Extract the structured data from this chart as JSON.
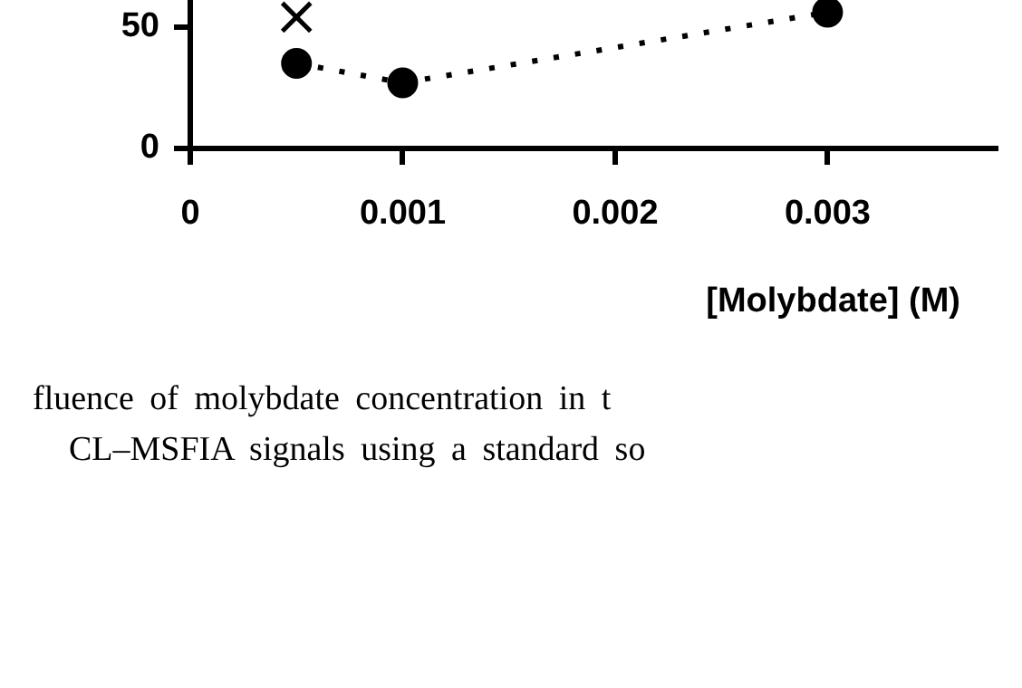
{
  "chart_data": {
    "type": "scatter",
    "xlabel": "[Molybdate] (M)",
    "xlim": [
      0,
      0.0038
    ],
    "xticks": [
      0,
      0.001,
      0.002,
      0.003
    ],
    "ylim": [
      0,
      60
    ],
    "yticks": [
      0,
      50
    ],
    "grid": false,
    "legend": false,
    "series": [
      {
        "type": "line",
        "color": "#000000",
        "marker": "circle",
        "line_style": "dotted",
        "x": [
          0.0005,
          0.001,
          0.003
        ],
        "values": [
          35,
          27,
          56
        ]
      },
      {
        "color": "#000000",
        "marker": "cross",
        "x": [
          0.0005
        ],
        "values": [
          54
        ]
      }
    ],
    "annotations": [
      "fluence of molybdate concentration in t",
      "CL–MSFIA signals using a standard so"
    ]
  }
}
